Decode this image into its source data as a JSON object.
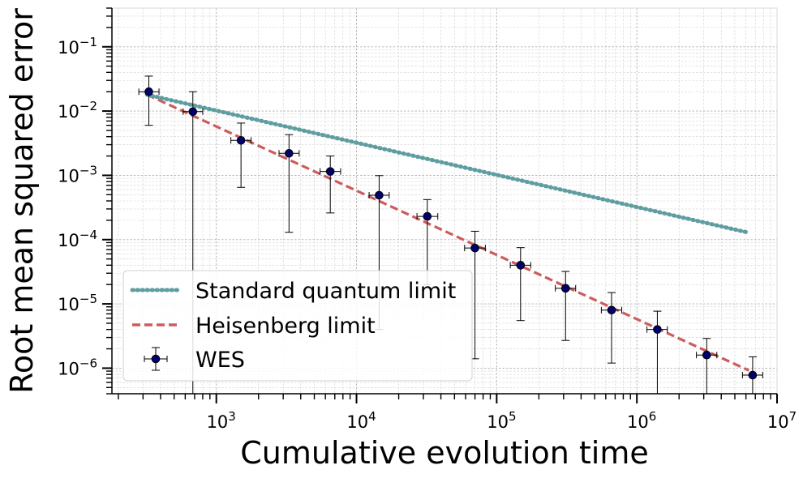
{
  "chart_data": {
    "type": "scatter",
    "title": "",
    "xlabel": "Cumulative evolution time",
    "ylabel": "Root mean squared error",
    "xscale": "log",
    "yscale": "log",
    "xlim": [
      180,
      10000000
    ],
    "ylim": [
      4e-07,
      0.4
    ],
    "grid": true,
    "legend_position": "lower-left",
    "x_ticks": [
      {
        "value": 1000,
        "base": "10",
        "exp": "3"
      },
      {
        "value": 10000,
        "base": "10",
        "exp": "4"
      },
      {
        "value": 100000,
        "base": "10",
        "exp": "5"
      },
      {
        "value": 1000000,
        "base": "10",
        "exp": "6"
      },
      {
        "value": 10000000,
        "base": "10",
        "exp": "7"
      }
    ],
    "y_ticks": [
      {
        "value": 0.1,
        "base": "10",
        "exp": "−1"
      },
      {
        "value": 0.01,
        "base": "10",
        "exp": "−2"
      },
      {
        "value": 0.001,
        "base": "10",
        "exp": "−3"
      },
      {
        "value": 0.0001,
        "base": "10",
        "exp": "−4"
      },
      {
        "value": 1e-05,
        "base": "10",
        "exp": "−5"
      },
      {
        "value": 1e-06,
        "base": "10",
        "exp": "−6"
      }
    ],
    "series": [
      {
        "name": "Standard quantum limit",
        "kind": "line",
        "style": "dotted",
        "color": "#5f9ea0",
        "x": [
          320,
          6300000
        ],
        "y": [
          0.018,
          0.000128
        ]
      },
      {
        "name": "Heisenberg limit",
        "kind": "line",
        "style": "dashed",
        "color": "#cd5c5c",
        "x": [
          320,
          6300000
        ],
        "y": [
          0.018,
          9.2e-07
        ]
      },
      {
        "name": "WES",
        "kind": "errorbar",
        "marker_color": "#00006e",
        "points": [
          {
            "x": 330,
            "y": 0.02,
            "y_lo": 0.006,
            "y_hi": 0.035,
            "x_lo": 280,
            "x_hi": 390
          },
          {
            "x": 680,
            "y": 0.0098,
            "y_lo": 1e-08,
            "y_hi": 0.02,
            "x_lo": 580,
            "x_hi": 800
          },
          {
            "x": 1500,
            "y": 0.0035,
            "y_lo": 0.00065,
            "y_hi": 0.0065,
            "x_lo": 1270,
            "x_hi": 1770
          },
          {
            "x": 3300,
            "y": 0.0022,
            "y_lo": 0.00013,
            "y_hi": 0.0043,
            "x_lo": 2800,
            "x_hi": 3900
          },
          {
            "x": 6500,
            "y": 0.00115,
            "y_lo": 0.00026,
            "y_hi": 0.002,
            "x_lo": 5500,
            "x_hi": 7700
          },
          {
            "x": 14500,
            "y": 0.00049,
            "y_lo": 4e-06,
            "y_hi": 0.00099,
            "x_lo": 12300,
            "x_hi": 17100
          },
          {
            "x": 32000,
            "y": 0.00023,
            "y_lo": 2e-05,
            "y_hi": 0.00042,
            "x_lo": 27000,
            "x_hi": 38000
          },
          {
            "x": 70000,
            "y": 7.4e-05,
            "y_lo": 1.4e-06,
            "y_hi": 0.000135,
            "x_lo": 59000,
            "x_hi": 83000
          },
          {
            "x": 148000,
            "y": 4e-05,
            "y_lo": 5.5e-06,
            "y_hi": 7.5e-05,
            "x_lo": 125000,
            "x_hi": 175000
          },
          {
            "x": 310000,
            "y": 1.75e-05,
            "y_lo": 2.7e-06,
            "y_hi": 3.2e-05,
            "x_lo": 262000,
            "x_hi": 366000
          },
          {
            "x": 660000,
            "y": 8e-06,
            "y_lo": 1.2e-06,
            "y_hi": 1.5e-05,
            "x_lo": 558000,
            "x_hi": 780000
          },
          {
            "x": 1400000,
            "y": 4e-06,
            "y_lo": 1e-08,
            "y_hi": 7.7e-06,
            "x_lo": 1180000,
            "x_hi": 1650000
          },
          {
            "x": 3150000,
            "y": 1.6e-06,
            "y_lo": 1e-08,
            "y_hi": 2.9e-06,
            "x_lo": 2660000,
            "x_hi": 3720000
          },
          {
            "x": 6700000,
            "y": 7.8e-07,
            "y_lo": 1e-08,
            "y_hi": 1.5e-06,
            "x_lo": 5670000,
            "x_hi": 7900000
          }
        ]
      }
    ]
  }
}
